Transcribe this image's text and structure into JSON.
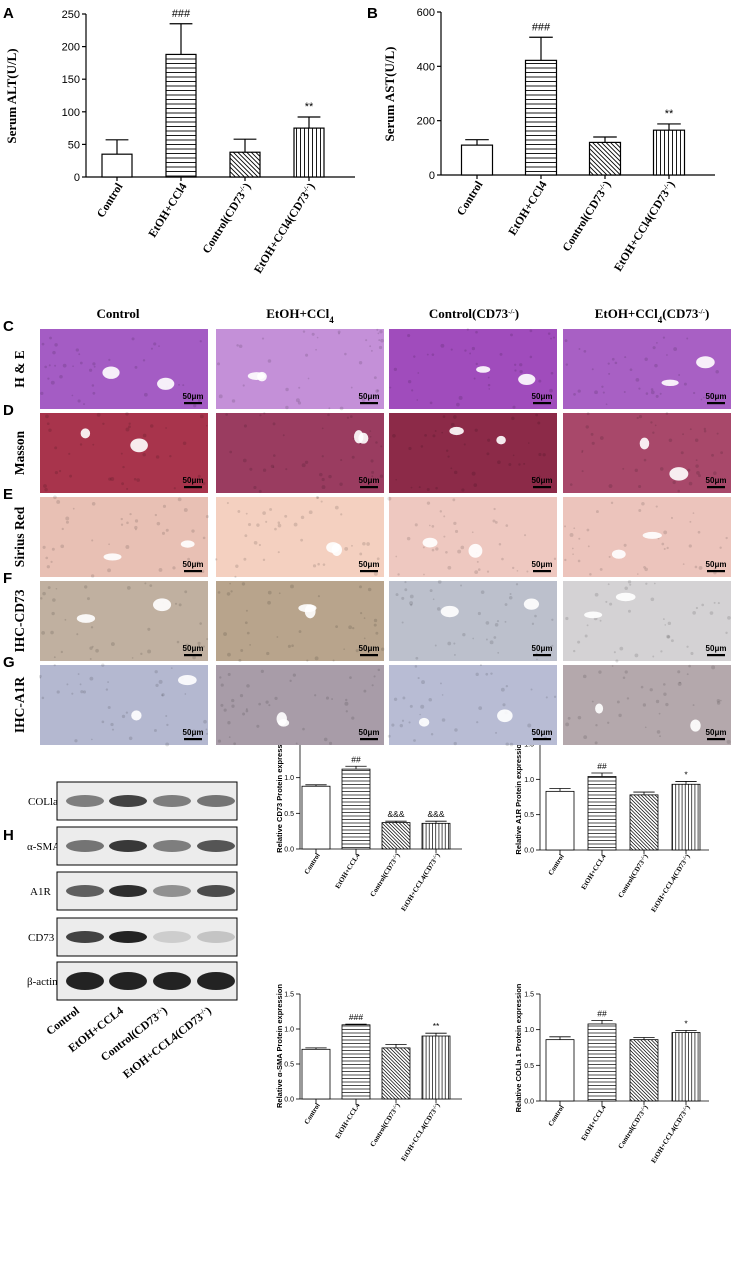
{
  "panels": {
    "A": "A",
    "B": "B",
    "C": "C",
    "D": "D",
    "E": "E",
    "F": "F",
    "G": "G",
    "H": "H"
  },
  "histology": {
    "columns": [
      "Control",
      "EtOH+CCl4",
      "Control(CD73-/-)",
      "EtOH+CCl4(CD73-/-)"
    ],
    "rows": [
      {
        "panel": "C",
        "label": "H & E",
        "colors": [
          "#a45cc4",
          "#c490d8",
          "#a04cbc",
          "#a860c4"
        ]
      },
      {
        "panel": "D",
        "label": "Masson",
        "colors": [
          "#a8344c",
          "#9a3c60",
          "#8c2a48",
          "#a8486a"
        ]
      },
      {
        "panel": "E",
        "label": "Sirius Red",
        "colors": [
          "#e8c0b4",
          "#f4d0c0",
          "#eec8c0",
          "#ecc4bc"
        ]
      },
      {
        "panel": "F",
        "label": "IHC-CD73",
        "colors": [
          "#c0b0a0",
          "#b8a48c",
          "#bcc0cc",
          "#d4d2d4"
        ]
      },
      {
        "panel": "G",
        "label": "IHC-A1R",
        "colors": [
          "#b4b8d0",
          "#a89ca8",
          "#b8bcd4",
          "#b4a8ac"
        ]
      }
    ],
    "scale_bar": "50μm"
  },
  "blot": {
    "bands": [
      "COLla 1",
      "α-SMA",
      "A1R",
      "CD73",
      "β-actin"
    ],
    "lanes": [
      "Control",
      "EtOH+CCL4",
      "Control(CD73-/-)",
      "EtOH+CCL4(CD73-/-)"
    ]
  },
  "chart_data": [
    {
      "id": "A",
      "type": "bar",
      "categories": [
        "Control",
        "EtOH+CCl4",
        "Control(CD73-/-)",
        "EtOH+CCl4(CD73-/-)"
      ],
      "values": [
        35,
        188,
        38,
        75
      ],
      "errors": [
        22,
        47,
        20,
        17
      ],
      "significance": [
        "",
        "###",
        "",
        "**"
      ],
      "ylabel": "Serum ALT(U/L)",
      "ylim": [
        0,
        250
      ],
      "yticks": [
        0,
        50,
        100,
        150,
        200,
        250
      ]
    },
    {
      "id": "B",
      "type": "bar",
      "categories": [
        "Control",
        "EtOH+CCl4",
        "Control(CD73-/-)",
        "EtOH+CCl4(CD73-/-)"
      ],
      "values": [
        110,
        422,
        120,
        165
      ],
      "errors": [
        20,
        85,
        20,
        23
      ],
      "significance": [
        "",
        "###",
        "",
        "**"
      ],
      "ylabel": "Serum AST(U/L)",
      "ylim": [
        0,
        600
      ],
      "yticks": [
        0,
        200,
        400,
        600
      ]
    },
    {
      "id": "H1",
      "type": "bar",
      "categories": [
        "Control",
        "EtOH+CCL4",
        "Control(CD73-/-)",
        "EtOH+CCL4(CD73-/-)"
      ],
      "values": [
        0.88,
        1.12,
        0.37,
        0.36
      ],
      "errors": [
        0.02,
        0.04,
        0.02,
        0.03
      ],
      "significance": [
        "",
        "##",
        "&&&",
        "&&&"
      ],
      "ylabel": "Relative CD73 Protein expression",
      "ylim": [
        0,
        1.5
      ],
      "yticks": [
        0.0,
        0.5,
        1.0,
        1.5
      ]
    },
    {
      "id": "H2",
      "type": "bar",
      "categories": [
        "Control",
        "EtOH+CCL4",
        "Control(CD73-/-)",
        "EtOH+CCL4(CD73-/-)"
      ],
      "values": [
        0.83,
        1.04,
        0.78,
        0.93
      ],
      "errors": [
        0.04,
        0.05,
        0.04,
        0.04
      ],
      "significance": [
        "",
        "##",
        "",
        "*"
      ],
      "ylabel": "Relative A1R Protein expression",
      "ylim": [
        0,
        1.5
      ],
      "yticks": [
        0.0,
        0.5,
        1.0,
        1.5
      ]
    },
    {
      "id": "H3",
      "type": "bar",
      "categories": [
        "Control",
        "EtOH+CCL4",
        "Control(CD73-/-)",
        "EtOH+CCL4(CD73-/-)"
      ],
      "values": [
        0.71,
        1.06,
        0.73,
        0.9
      ],
      "errors": [
        0.02,
        0.01,
        0.05,
        0.04
      ],
      "significance": [
        "",
        "###",
        "",
        "**"
      ],
      "ylabel": "Relative α-SMA Protein expression",
      "ylim": [
        0,
        1.5
      ],
      "yticks": [
        0.0,
        0.5,
        1.0,
        1.5
      ]
    },
    {
      "id": "H4",
      "type": "bar",
      "categories": [
        "Control",
        "EtOH+CCL4",
        "Control(CD73-/-)",
        "EtOH+CCL4(CD73-/-)"
      ],
      "values": [
        0.86,
        1.08,
        0.86,
        0.96
      ],
      "errors": [
        0.04,
        0.05,
        0.03,
        0.03
      ],
      "significance": [
        "",
        "##",
        "",
        "*"
      ],
      "ylabel": "Relative COLla 1 Protein expression",
      "ylim": [
        0,
        1.5
      ],
      "yticks": [
        0.0,
        0.5,
        1.0,
        1.5
      ]
    }
  ]
}
